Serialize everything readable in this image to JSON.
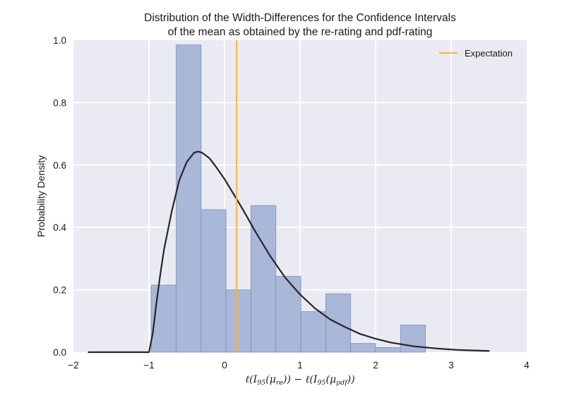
{
  "chart_data": {
    "type": "bar",
    "title_lines": [
      "Distribution of the Width-Differences for the Confidence Intervals",
      "of the mean as obtained by the re-rating and pdf-rating"
    ],
    "ylabel": "Probability Density",
    "xlabel_parts": [
      {
        "t": "ℓ(",
        "sub": false
      },
      {
        "t": "I",
        "sub": false
      },
      {
        "t": "95",
        "sub": true
      },
      {
        "t": "(",
        "sub": false
      },
      {
        "t": "μ",
        "sub": false
      },
      {
        "t": "re",
        "sub": true
      },
      {
        "t": ")) − ℓ(",
        "sub": false
      },
      {
        "t": "I",
        "sub": false
      },
      {
        "t": "95",
        "sub": true
      },
      {
        "t": "(",
        "sub": false
      },
      {
        "t": "μ",
        "sub": false
      },
      {
        "t": "pdf",
        "sub": true
      },
      {
        "t": "))",
        "sub": false
      }
    ],
    "xlim": [
      -2,
      4
    ],
    "ylim": [
      0,
      1.0
    ],
    "xticks": [
      -2,
      -1,
      0,
      1,
      2,
      3,
      4
    ],
    "xtick_labels": [
      "−2",
      "−1",
      "0",
      "1",
      "2",
      "3",
      "4"
    ],
    "yticks": [
      0.0,
      0.2,
      0.4,
      0.6,
      0.8,
      1.0
    ],
    "ytick_labels": [
      "0.0",
      "0.2",
      "0.4",
      "0.6",
      "0.8",
      "1.0"
    ],
    "grid": true,
    "histogram": {
      "bin_edges": [
        -0.97,
        -0.64,
        -0.31,
        0.02,
        0.35,
        0.68,
        1.01,
        1.34,
        1.67,
        2.0,
        2.33,
        2.66
      ],
      "values": [
        0.215,
        0.985,
        0.457,
        0.2,
        0.47,
        0.243,
        0.13,
        0.187,
        0.028,
        0.015,
        0.087
      ],
      "color": "#a9b8d8",
      "edge_color": "#7f8fb5"
    },
    "density_curve": {
      "x": [
        -1.8,
        -1.0,
        -0.95,
        -0.9,
        -0.85,
        -0.8,
        -0.7,
        -0.6,
        -0.5,
        -0.4,
        -0.35,
        -0.3,
        -0.2,
        -0.1,
        0.0,
        0.1,
        0.2,
        0.3,
        0.4,
        0.5,
        0.6,
        0.8,
        1.0,
        1.2,
        1.4,
        1.6,
        1.8,
        2.0,
        2.2,
        2.5,
        2.8,
        3.1,
        3.5
      ],
      "y": [
        0.0,
        0.0,
        0.06,
        0.16,
        0.25,
        0.33,
        0.45,
        0.55,
        0.61,
        0.64,
        0.643,
        0.64,
        0.622,
        0.59,
        0.555,
        0.515,
        0.475,
        0.433,
        0.39,
        0.35,
        0.31,
        0.24,
        0.185,
        0.14,
        0.105,
        0.08,
        0.058,
        0.043,
        0.031,
        0.019,
        0.012,
        0.007,
        0.004
      ],
      "color": "#262626"
    },
    "expectation": {
      "x": 0.16,
      "label": "Expectation",
      "color": "#f5b540"
    },
    "legend_position": "top-right",
    "colors": {
      "axes_bg": "#eaeaf2",
      "grid": "#ffffff"
    }
  }
}
